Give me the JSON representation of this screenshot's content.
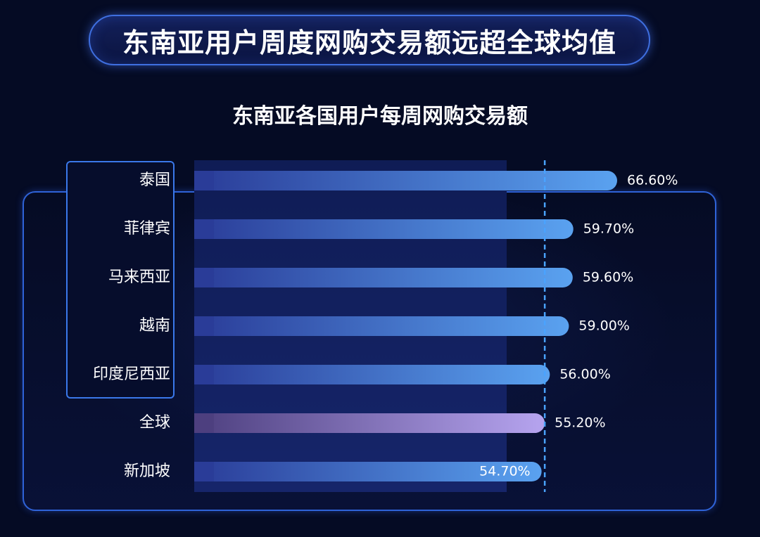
{
  "banner": {
    "title": "东南亚用户周度网购交易额远超全球均值"
  },
  "chart_data": {
    "type": "bar",
    "orientation": "horizontal",
    "title": "东南亚各国用户每周网购交易额",
    "categories": [
      "泰国",
      "菲律宾",
      "马来西亚",
      "越南",
      "印度尼西亚",
      "全球",
      "新加坡"
    ],
    "values": [
      66.6,
      59.7,
      59.6,
      59.0,
      56.0,
      55.2,
      54.7
    ],
    "value_labels": [
      "66.60%",
      "59.70%",
      "59.60%",
      "59.00%",
      "56.00%",
      "55.20%",
      "54.70%"
    ],
    "xlim": [
      0,
      66.6
    ],
    "reference_line": {
      "value": 55.2,
      "style": "dashed"
    },
    "highlighted_categories": [
      "泰国",
      "菲律宾",
      "马来西亚",
      "越南",
      "印度尼西亚"
    ],
    "colors": {
      "bar_start": "#2a3c98",
      "bar_end": "#5aa2f0",
      "global_start": "#4d3f7f",
      "global_end": "#b6a4ef",
      "reference_line": "#4aa3ff",
      "label": "#ffffff"
    },
    "grid": false,
    "legend": "none"
  }
}
